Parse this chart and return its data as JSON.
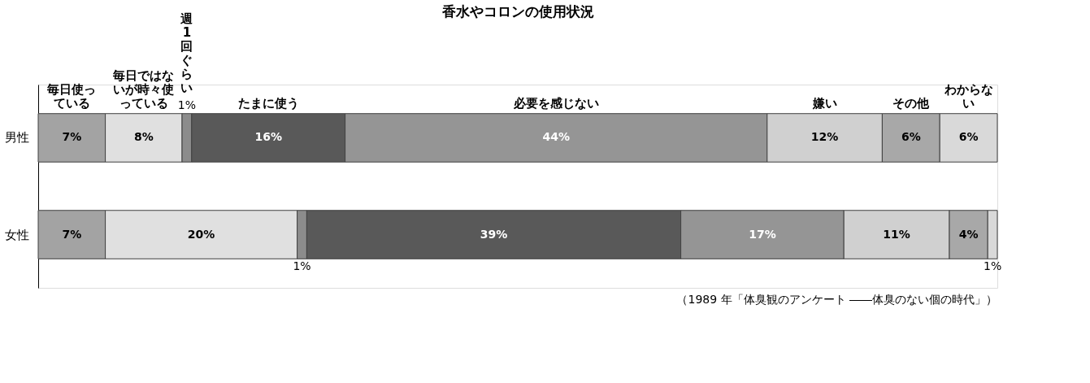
{
  "chart_data": {
    "type": "bar",
    "orientation": "horizontal",
    "stacked": true,
    "title": "香水やコロンの使用状況",
    "categories": [
      "男性",
      "女性"
    ],
    "series": [
      {
        "name": "毎日使っている",
        "color": "#a3a3a3",
        "values": [
          7,
          7
        ],
        "value_labels": [
          "7%",
          "7%"
        ]
      },
      {
        "name": "毎日ではないが時々使っている",
        "color": "#e0e0e0",
        "values": [
          8,
          20
        ],
        "value_labels": [
          "8%",
          "20%"
        ]
      },
      {
        "name": "週1回ぐらい",
        "color": "#8c8c8c",
        "values": [
          1,
          1
        ],
        "value_labels": [
          "1%",
          "1%"
        ]
      },
      {
        "name": "たまに使う",
        "color": "#595959",
        "values": [
          16,
          39
        ],
        "value_labels": [
          "16%",
          "39%"
        ]
      },
      {
        "name": "必要を感じない",
        "color": "#959595",
        "values": [
          44,
          17
        ],
        "value_labels": [
          "44%",
          "17%"
        ]
      },
      {
        "name": "嫌い",
        "color": "#d0d0d0",
        "values": [
          12,
          11
        ],
        "value_labels": [
          "12%",
          "11%"
        ]
      },
      {
        "name": "その他",
        "color": "#a8a8a8",
        "values": [
          6,
          4
        ],
        "value_labels": [
          "6%",
          "4%"
        ]
      },
      {
        "name": "わからない",
        "color": "#d9d9d9",
        "values": [
          6,
          1
        ],
        "value_labels": [
          "6%",
          "1%"
        ]
      }
    ],
    "xlim": [
      0,
      100
    ],
    "tick_labels": "y",
    "annotations": [
      "（1989 年「体臭観のアンケート ――体臭のない個の時代」）"
    ]
  }
}
